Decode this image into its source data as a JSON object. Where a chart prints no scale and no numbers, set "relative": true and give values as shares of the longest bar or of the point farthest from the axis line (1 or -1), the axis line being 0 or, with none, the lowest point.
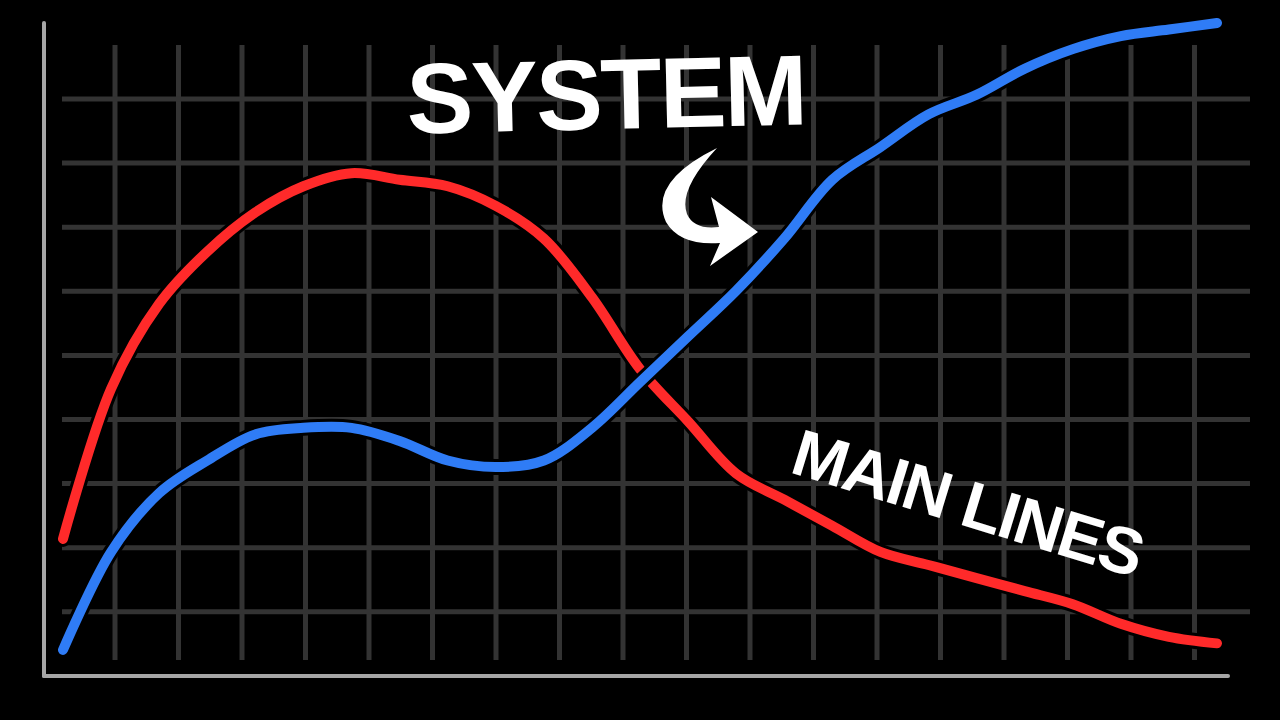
{
  "chart_data": {
    "type": "line",
    "relative": true,
    "grid": true,
    "categories": [
      null,
      null,
      null,
      null,
      null,
      null,
      null,
      null,
      null,
      null,
      null,
      null,
      null,
      null,
      null,
      null,
      null,
      null,
      null,
      null,
      null,
      null,
      null,
      null,
      null
    ],
    "series": [
      {
        "color": "#ff2a2a",
        "values": [
          0.21,
          0.44,
          0.57,
          0.65,
          0.71,
          0.75,
          0.77,
          0.76,
          0.75,
          0.72,
          0.67,
          0.58,
          0.47,
          0.39,
          0.31,
          0.27,
          0.23,
          0.19,
          0.17,
          0.15,
          0.13,
          0.11,
          0.08,
          0.06,
          0.05
        ]
      },
      {
        "color": "#2f7cf6",
        "values": [
          0.04,
          0.19,
          0.28,
          0.33,
          0.37,
          0.38,
          0.38,
          0.36,
          0.33,
          0.32,
          0.33,
          0.38,
          0.45,
          0.52,
          0.59,
          0.67,
          0.76,
          0.81,
          0.86,
          0.89,
          0.93,
          0.96,
          0.98,
          0.99,
          1
        ]
      }
    ],
    "annotations": [
      "SYSTEM",
      "MAIN LINES"
    ]
  }
}
